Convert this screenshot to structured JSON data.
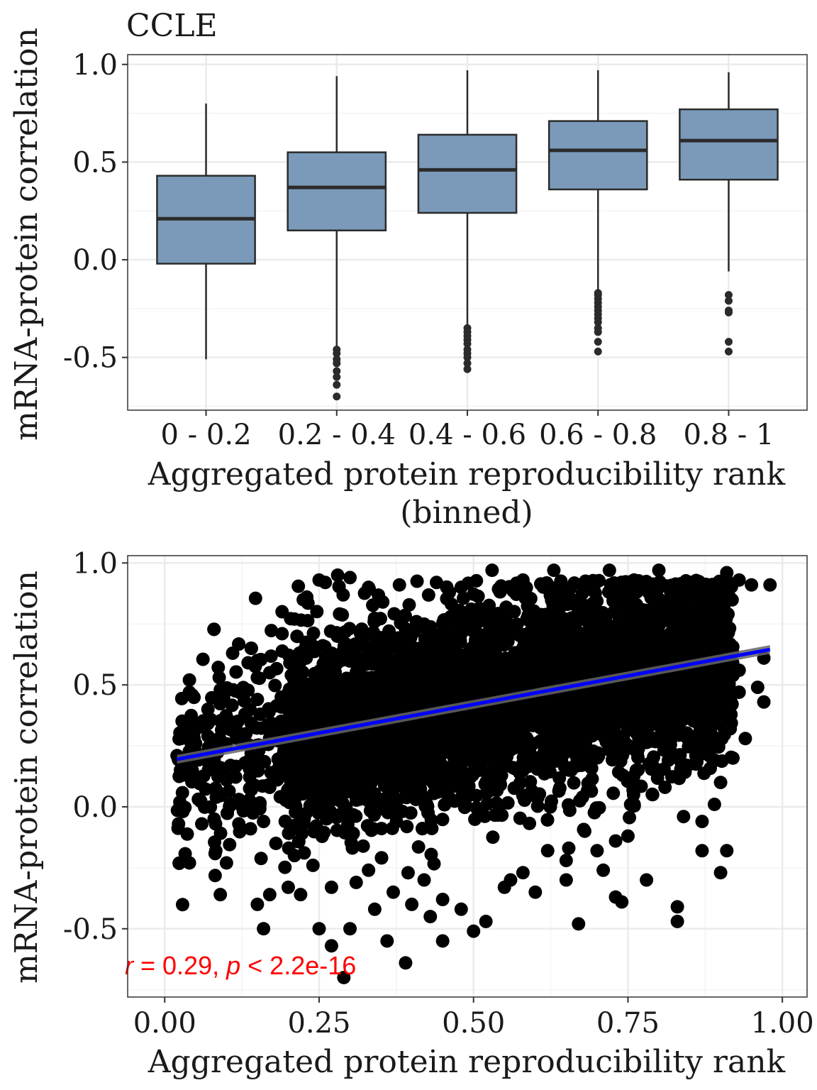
{
  "chart_data": [
    {
      "type": "box",
      "title": "CCLE",
      "xlabel": "Aggregated protein reproducibility rank\n(binned)",
      "ylabel": "mRNA-protein correlation",
      "categories": [
        "0 - 0.2",
        "0.2 - 0.4",
        "0.4 - 0.6",
        "0.6 - 0.8",
        "0.8 - 1"
      ],
      "ylim": [
        -0.77,
        1.05
      ],
      "yticks": [
        "1.0",
        "0.5",
        "0.0",
        "-0.5"
      ],
      "ytick_values": [
        1.0,
        0.5,
        0.0,
        -0.5
      ],
      "grid": true,
      "box_fill": "#7b9aba",
      "box_stroke": "#2b2b2b",
      "boxes": [
        {
          "whisker_high": 0.8,
          "q3": 0.43,
          "median": 0.21,
          "q1": -0.02,
          "whisker_low": -0.51,
          "outliers": []
        },
        {
          "whisker_high": 0.94,
          "q3": 0.55,
          "median": 0.37,
          "q1": 0.15,
          "whisker_low": -0.45,
          "outliers": [
            -0.46,
            -0.48,
            -0.51,
            -0.53,
            -0.57,
            -0.6,
            -0.64,
            -0.7
          ]
        },
        {
          "whisker_high": 0.97,
          "q3": 0.64,
          "median": 0.46,
          "q1": 0.24,
          "whisker_low": -0.34,
          "outliers": [
            -0.35,
            -0.37,
            -0.39,
            -0.41,
            -0.43,
            -0.46,
            -0.48,
            -0.5,
            -0.53,
            -0.56
          ]
        },
        {
          "whisker_high": 0.97,
          "q3": 0.71,
          "median": 0.56,
          "q1": 0.36,
          "whisker_low": -0.16,
          "outliers": [
            -0.17,
            -0.18,
            -0.2,
            -0.22,
            -0.24,
            -0.26,
            -0.28,
            -0.3,
            -0.32,
            -0.35,
            -0.37,
            -0.42,
            -0.47
          ]
        },
        {
          "whisker_high": 0.96,
          "q3": 0.77,
          "median": 0.61,
          "q1": 0.41,
          "whisker_low": -0.06,
          "outliers": [
            -0.18,
            -0.21,
            -0.26,
            -0.27,
            -0.42,
            -0.47
          ]
        }
      ]
    },
    {
      "type": "scatter",
      "xlabel": "Aggregated protein reproducibility rank",
      "ylabel": "mRNA-protein correlation",
      "xlim": [
        -0.06,
        1.04
      ],
      "ylim": [
        -0.78,
        1.03
      ],
      "xticks": [
        "0.00",
        "0.25",
        "0.50",
        "0.75",
        "1.00"
      ],
      "xtick_values": [
        0.0,
        0.25,
        0.5,
        0.75,
        1.0
      ],
      "yticks": [
        "1.0",
        "0.5",
        "0.0",
        "-0.5"
      ],
      "ytick_values": [
        1.0,
        0.5,
        0.0,
        -0.5
      ],
      "grid": true,
      "point_color": "#000000",
      "point_count_approx": 5000,
      "x_range_of_points": [
        0.02,
        0.98
      ],
      "fit_line": {
        "color": "#0000ff",
        "x": [
          0.02,
          0.98
        ],
        "y": [
          0.195,
          0.645
        ]
      },
      "fit_band_color": "#666666",
      "annotation": {
        "r_symbol": "r",
        "r_text": " = 0.29, ",
        "p_symbol": "p",
        "p_text": " < 2.2e-16",
        "color": "#ff0000"
      },
      "scattered_points": [
        [
          0.02,
          0.21
        ],
        [
          0.04,
          0.52
        ],
        [
          0.04,
          0.47
        ],
        [
          0.05,
          0.26
        ],
        [
          0.06,
          0.33
        ],
        [
          0.07,
          0.4
        ],
        [
          0.06,
          -0.07
        ],
        [
          0.09,
          -0.36
        ],
        [
          0.1,
          -0.23
        ],
        [
          0.08,
          -0.05
        ],
        [
          0.11,
          0.63
        ],
        [
          0.04,
          -0.23
        ],
        [
          0.09,
          0.48
        ],
        [
          0.12,
          -0.07
        ],
        [
          0.13,
          0.18
        ],
        [
          0.14,
          0.14
        ],
        [
          0.16,
          -0.5
        ],
        [
          0.15,
          -0.4
        ],
        [
          0.17,
          -0.36
        ],
        [
          0.14,
          0.22
        ],
        [
          0.17,
          0.08
        ],
        [
          0.14,
          0.65
        ],
        [
          0.15,
          0.6
        ],
        [
          0.19,
          0.8
        ],
        [
          0.28,
          0.95
        ],
        [
          0.3,
          0.94
        ],
        [
          0.25,
          0.93
        ],
        [
          0.26,
          0.92
        ],
        [
          0.29,
          -0.7
        ],
        [
          0.27,
          -0.57
        ],
        [
          0.25,
          -0.5
        ],
        [
          0.3,
          -0.5
        ],
        [
          0.36,
          -0.55
        ],
        [
          0.39,
          -0.64
        ],
        [
          0.45,
          -0.55
        ],
        [
          0.5,
          -0.51
        ],
        [
          0.52,
          -0.47
        ],
        [
          0.67,
          -0.48
        ],
        [
          0.74,
          -0.39
        ],
        [
          0.83,
          -0.47
        ],
        [
          0.83,
          -0.41
        ],
        [
          0.87,
          -0.18
        ],
        [
          0.9,
          -0.27
        ],
        [
          0.91,
          -0.18
        ],
        [
          0.78,
          -0.3
        ],
        [
          0.71,
          -0.26
        ],
        [
          0.73,
          -0.37
        ],
        [
          0.65,
          -0.3
        ],
        [
          0.6,
          -0.35
        ],
        [
          0.56,
          -0.3
        ],
        [
          0.45,
          -0.38
        ],
        [
          0.42,
          -0.3
        ],
        [
          0.34,
          -0.42
        ],
        [
          0.22,
          -0.36
        ],
        [
          0.2,
          -0.33
        ],
        [
          0.53,
          0.97
        ],
        [
          0.63,
          0.97
        ],
        [
          0.72,
          0.97
        ],
        [
          0.8,
          0.97
        ],
        [
          0.95,
          0.91
        ],
        [
          0.98,
          0.91
        ],
        [
          0.93,
          0.93
        ],
        [
          0.91,
          0.96
        ],
        [
          0.97,
          0.43
        ],
        [
          0.96,
          0.49
        ],
        [
          0.94,
          0.28
        ],
        [
          0.92,
          0.2
        ],
        [
          0.9,
          0.1
        ],
        [
          0.89,
          0.01
        ],
        [
          0.87,
          -0.06
        ],
        [
          0.84,
          -0.04
        ],
        [
          0.81,
          0.08
        ],
        [
          0.86,
          0.21
        ],
        [
          0.93,
          0.56
        ],
        [
          0.97,
          0.61
        ],
        [
          0.93,
          0.47
        ],
        [
          0.82,
          0.32
        ],
        [
          0.79,
          0.05
        ],
        [
          0.76,
          0.01
        ],
        [
          0.75,
          -0.12
        ],
        [
          0.73,
          -0.14
        ],
        [
          0.7,
          -0.18
        ],
        [
          0.68,
          -0.1
        ],
        [
          0.65,
          -0.22
        ],
        [
          0.62,
          -0.18
        ],
        [
          0.58,
          -0.27
        ],
        [
          0.55,
          -0.33
        ],
        [
          0.48,
          -0.42
        ],
        [
          0.43,
          -0.45
        ],
        [
          0.4,
          -0.4
        ],
        [
          0.37,
          -0.35
        ],
        [
          0.33,
          -0.26
        ],
        [
          0.31,
          -0.31
        ],
        [
          0.27,
          -0.33
        ],
        [
          0.24,
          -0.24
        ],
        [
          0.21,
          -0.2
        ],
        [
          0.18,
          -0.15
        ],
        [
          0.16,
          -0.06
        ],
        [
          0.12,
          0.03
        ],
        [
          0.1,
          0.11
        ],
        [
          0.08,
          0.19
        ],
        [
          0.07,
          0.29
        ],
        [
          0.13,
          0.38
        ],
        [
          0.15,
          0.44
        ],
        [
          0.17,
          0.55
        ],
        [
          0.19,
          0.71
        ],
        [
          0.21,
          0.77
        ],
        [
          0.23,
          0.86
        ],
        [
          0.33,
          0.9
        ],
        [
          0.38,
          0.91
        ],
        [
          0.44,
          0.92
        ],
        [
          0.48,
          0.9
        ],
        [
          0.58,
          0.93
        ],
        [
          0.68,
          0.92
        ],
        [
          0.76,
          0.93
        ],
        [
          0.85,
          0.92
        ],
        [
          0.88,
          0.9
        ],
        [
          0.2,
          0.05
        ],
        [
          0.22,
          0.12
        ]
      ]
    }
  ],
  "colors": {
    "panel_border": "#333333",
    "grid_major": "#ebebeb",
    "grid_minor": "#f4f4f4",
    "text": "#1a1a1a"
  }
}
